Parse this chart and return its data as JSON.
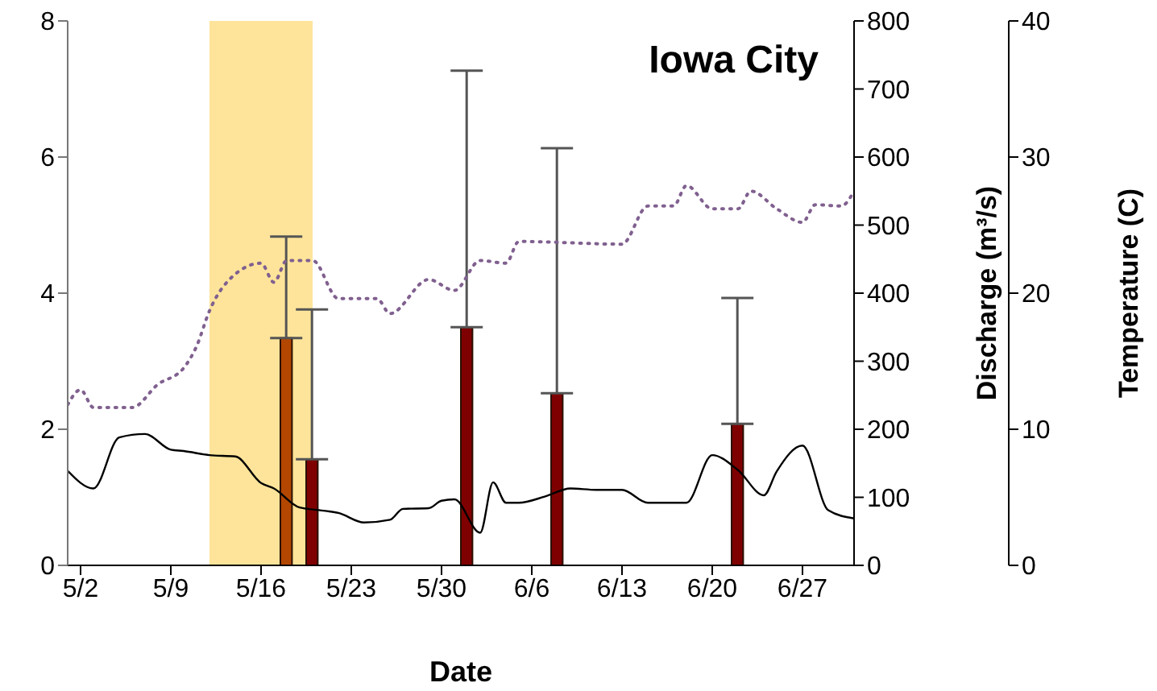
{
  "chart_data": {
    "type": "bar",
    "title": "Iowa City",
    "xlabel": "Date",
    "y2label": "Discharge (m³/s)",
    "y3label": "Temperature (C)",
    "xlim": [
      "--05-01",
      "--07-01"
    ],
    "xticks": [
      {
        "value": "--05-02",
        "label": "5/2"
      },
      {
        "value": "--05-09",
        "label": "5/9"
      },
      {
        "value": "--05-16",
        "label": "5/16"
      },
      {
        "value": "--05-23",
        "label": "5/23"
      },
      {
        "value": "--05-30",
        "label": "5/30"
      },
      {
        "value": "--06-06",
        "label": "6/6"
      },
      {
        "value": "--06-13",
        "label": "6/13"
      },
      {
        "value": "--06-20",
        "label": "6/20"
      },
      {
        "value": "--06-27",
        "label": "6/27"
      }
    ],
    "ylim": [
      0,
      8
    ],
    "yticks": [
      0,
      2,
      4,
      6,
      8
    ],
    "y2lim": [
      0,
      800
    ],
    "y2ticks": [
      0,
      100,
      200,
      300,
      400,
      500,
      600,
      700,
      800
    ],
    "y3lim": [
      0,
      40
    ],
    "y3ticks": [
      0,
      10,
      20,
      30,
      40
    ],
    "bands": [
      {
        "axis": "x",
        "from": "--05-12",
        "to": "--05-20",
        "color": "#fde49a"
      }
    ],
    "series": [
      {
        "x": [
          "--05-18",
          "--05-20",
          "--06-01",
          "--06-08",
          "--06-22"
        ],
        "values": [
          3.34,
          1.56,
          3.5,
          2.53,
          2.08
        ],
        "colors": [
          "#b34700",
          "#7f0000",
          "#7f0000",
          "#7f0000",
          "#7f0000"
        ],
        "errors": [
          [
            3.34,
            4.83
          ],
          [
            1.56,
            3.76
          ],
          [
            3.5,
            7.27
          ],
          [
            2.53,
            6.13
          ],
          [
            2.08,
            3.93
          ]
        ]
      },
      {
        "type": "line",
        "axis": "y2",
        "color": "#000000",
        "line_style": "solid",
        "x": [
          "--05-01",
          "--05-03",
          "--05-05",
          "--05-07",
          "--05-09",
          "--05-10",
          "--05-12",
          "--05-14",
          "--05-16",
          "--05-17",
          "--05-19",
          "--05-21",
          "--05-22",
          "--05-24",
          "--05-26",
          "--05-27",
          "--05-29",
          "--05-30",
          "--05-31",
          "--06-02",
          "--06-03",
          "--06-04",
          "--06-05",
          "--06-07",
          "--06-09",
          "--06-11",
          "--06-13",
          "--06-15",
          "--06-18",
          "--06-20",
          "--06-22",
          "--06-24",
          "--06-25",
          "--06-27",
          "--06-29",
          "--07-01"
        ],
        "values": [
          139,
          113,
          188,
          193,
          170,
          168,
          162,
          160,
          121,
          113,
          85,
          80,
          77,
          63,
          67,
          83,
          84,
          95,
          97,
          48,
          122,
          92,
          92,
          101,
          113,
          111,
          111,
          92,
          92,
          162,
          140,
          103,
          138,
          176,
          81,
          69
        ]
      },
      {
        "type": "line",
        "axis": "y3",
        "color": "#80608f",
        "line_style": "dotted",
        "x": [
          "--05-01",
          "--05-02",
          "--05-03",
          "--05-06",
          "--05-08",
          "--05-10",
          "--05-11",
          "--05-12",
          "--05-14",
          "--05-16",
          "--05-17",
          "--05-18",
          "--05-20",
          "--05-22",
          "--05-25",
          "--05-26",
          "--05-29",
          "--05-31",
          "--06-02",
          "--06-04",
          "--06-05",
          "--06-13",
          "--06-15",
          "--06-17",
          "--06-18",
          "--06-20",
          "--06-22",
          "--06-23",
          "--06-25",
          "--06-27",
          "--06-28",
          "--06-30",
          "--07-01"
        ],
        "values": [
          11.8,
          12.9,
          11.6,
          11.6,
          13.3,
          14.5,
          16.1,
          18.7,
          21.4,
          22.2,
          20.8,
          22.4,
          22.4,
          19.6,
          19.6,
          18.5,
          21.0,
          20.2,
          22.4,
          22.2,
          23.8,
          23.6,
          26.4,
          26.4,
          27.9,
          26.2,
          26.2,
          27.5,
          26.2,
          25.2,
          26.5,
          26.4,
          27.5
        ]
      }
    ]
  }
}
